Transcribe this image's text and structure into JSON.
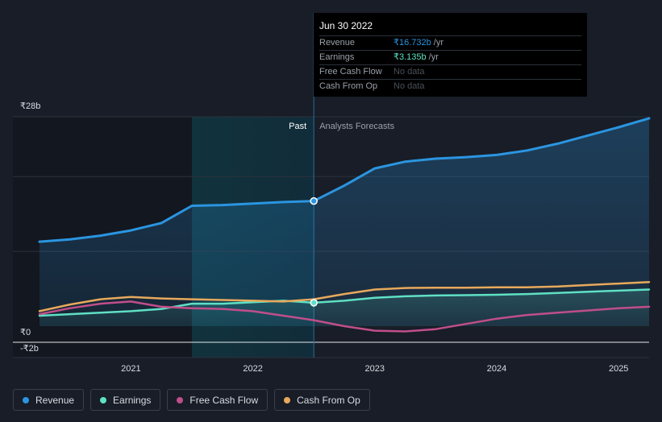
{
  "chart_data": {
    "type": "area",
    "currency": "₹",
    "x_ticks": [
      "2021",
      "2022",
      "2023",
      "2024",
      "2025"
    ],
    "y_ticks": [
      {
        "label": "₹28b",
        "value": 28
      },
      {
        "label": "₹0",
        "value": 0
      },
      {
        "label": "-₹2b",
        "value": -2
      }
    ],
    "ylim": [
      -2,
      28
    ],
    "xlim": [
      2020.25,
      2025.25
    ],
    "divider_x": 2022.5,
    "highlight_start_x": 2021.5,
    "past_label": "Past",
    "forecast_label": "Analysts Forecasts",
    "series": [
      {
        "name": "Revenue",
        "color": "#2b95e0",
        "fill": true,
        "points": [
          [
            2020.25,
            11.3
          ],
          [
            2020.5,
            11.6
          ],
          [
            2020.75,
            12.1
          ],
          [
            2021.0,
            12.8
          ],
          [
            2021.25,
            13.8
          ],
          [
            2021.5,
            16.1
          ],
          [
            2021.75,
            16.2
          ],
          [
            2022.0,
            16.4
          ],
          [
            2022.25,
            16.6
          ],
          [
            2022.5,
            16.732
          ],
          [
            2022.75,
            18.8
          ],
          [
            2023.0,
            21.1
          ],
          [
            2023.25,
            22.0
          ],
          [
            2023.5,
            22.4
          ],
          [
            2023.75,
            22.6
          ],
          [
            2024.0,
            22.9
          ],
          [
            2024.25,
            23.5
          ],
          [
            2024.5,
            24.4
          ],
          [
            2024.75,
            25.5
          ],
          [
            2025.0,
            26.6
          ],
          [
            2025.25,
            27.8
          ]
        ]
      },
      {
        "name": "Earnings",
        "color": "#5fe0c4",
        "fill": true,
        "points": [
          [
            2020.25,
            1.4
          ],
          [
            2020.5,
            1.6
          ],
          [
            2020.75,
            1.8
          ],
          [
            2021.0,
            2.0
          ],
          [
            2021.25,
            2.3
          ],
          [
            2021.5,
            3.0
          ],
          [
            2021.75,
            3.0
          ],
          [
            2022.0,
            3.2
          ],
          [
            2022.25,
            3.4
          ],
          [
            2022.5,
            3.135
          ],
          [
            2022.75,
            3.4
          ],
          [
            2023.0,
            3.8
          ],
          [
            2023.25,
            4.0
          ],
          [
            2023.5,
            4.1
          ],
          [
            2023.75,
            4.15
          ],
          [
            2024.0,
            4.2
          ],
          [
            2024.25,
            4.3
          ],
          [
            2024.5,
            4.45
          ],
          [
            2024.75,
            4.6
          ],
          [
            2025.0,
            4.75
          ],
          [
            2025.25,
            4.9
          ]
        ]
      },
      {
        "name": "Free Cash Flow",
        "color": "#c04e8a",
        "fill": false,
        "points": [
          [
            2020.25,
            1.6
          ],
          [
            2020.5,
            2.4
          ],
          [
            2020.75,
            3.0
          ],
          [
            2021.0,
            3.3
          ],
          [
            2021.25,
            2.6
          ],
          [
            2021.5,
            2.4
          ],
          [
            2021.75,
            2.3
          ],
          [
            2022.0,
            2.0
          ],
          [
            2022.25,
            1.4
          ],
          [
            2022.5,
            0.8
          ],
          [
            2022.75,
            0.0
          ],
          [
            2023.0,
            -0.6
          ],
          [
            2023.25,
            -0.7
          ],
          [
            2023.5,
            -0.4
          ],
          [
            2023.75,
            0.3
          ],
          [
            2024.0,
            1.0
          ],
          [
            2024.25,
            1.5
          ],
          [
            2024.5,
            1.8
          ],
          [
            2024.75,
            2.1
          ],
          [
            2025.0,
            2.4
          ],
          [
            2025.25,
            2.6
          ]
        ]
      },
      {
        "name": "Cash From Op",
        "color": "#e8a95c",
        "fill": false,
        "points": [
          [
            2020.25,
            2.0
          ],
          [
            2020.5,
            2.9
          ],
          [
            2020.75,
            3.6
          ],
          [
            2021.0,
            3.9
          ],
          [
            2021.25,
            3.7
          ],
          [
            2021.5,
            3.6
          ],
          [
            2021.75,
            3.5
          ],
          [
            2022.0,
            3.4
          ],
          [
            2022.25,
            3.3
          ],
          [
            2022.5,
            3.6
          ],
          [
            2022.75,
            4.3
          ],
          [
            2023.0,
            4.9
          ],
          [
            2023.25,
            5.1
          ],
          [
            2023.5,
            5.15
          ],
          [
            2023.75,
            5.15
          ],
          [
            2024.0,
            5.2
          ],
          [
            2024.25,
            5.2
          ],
          [
            2024.5,
            5.3
          ],
          [
            2024.75,
            5.5
          ],
          [
            2025.0,
            5.7
          ],
          [
            2025.25,
            5.9
          ]
        ]
      }
    ],
    "hover_markers": [
      {
        "series": "Revenue",
        "x": 2022.5,
        "y": 16.732
      },
      {
        "series": "Earnings",
        "x": 2022.5,
        "y": 3.135
      }
    ]
  },
  "tooltip": {
    "date": "Jun 30 2022",
    "rows": [
      {
        "label": "Revenue",
        "value": "₹16.732b",
        "unit": "/yr"
      },
      {
        "label": "Earnings",
        "value": "₹3.135b",
        "unit": "/yr"
      },
      {
        "label": "Free Cash Flow",
        "value": "No data",
        "unit": ""
      },
      {
        "label": "Cash From Op",
        "value": "No data",
        "unit": ""
      }
    ]
  },
  "legend": [
    {
      "label": "Revenue",
      "color": "#2b95e0"
    },
    {
      "label": "Earnings",
      "color": "#5fe0c4"
    },
    {
      "label": "Free Cash Flow",
      "color": "#c04e8a"
    },
    {
      "label": "Cash From Op",
      "color": "#e8a95c"
    }
  ]
}
